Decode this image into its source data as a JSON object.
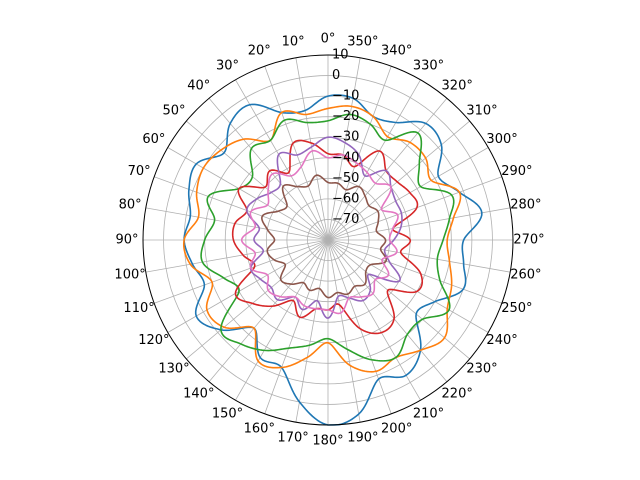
{
  "chart_data": {
    "type": "line",
    "projection": "polar",
    "theta_zero": "top",
    "theta_direction": "clockwise",
    "title": "",
    "xlabel": "",
    "ylabel": "",
    "rlim": [
      -80,
      10
    ],
    "grid": true,
    "legend": "none",
    "angle_tick_labels": [
      "0°",
      "10°",
      "20°",
      "30°",
      "40°",
      "50°",
      "60°",
      "70°",
      "80°",
      "90°",
      "100°",
      "110°",
      "120°",
      "130°",
      "140°",
      "150°",
      "160°",
      "170°",
      "180°",
      "190°",
      "200°",
      "210°",
      "220°",
      "230°",
      "240°",
      "250°",
      "260°",
      "270°",
      "280°",
      "290°",
      "300°",
      "310°",
      "320°",
      "330°",
      "340°",
      "350°"
    ],
    "radial_ticks": [
      10,
      0,
      -10,
      -20,
      -30,
      -40,
      -50,
      -60,
      -70
    ],
    "radial_tick_labels": [
      "10",
      "0",
      "−10",
      "−20",
      "−30",
      "−40",
      "−50",
      "−60",
      "−70"
    ],
    "radial_label_angle_deg": 0,
    "theta_deg": [
      0,
      10,
      20,
      30,
      40,
      50,
      60,
      70,
      80,
      90,
      100,
      110,
      120,
      130,
      140,
      150,
      160,
      170,
      180,
      190,
      200,
      210,
      220,
      230,
      240,
      250,
      260,
      270,
      280,
      290,
      300,
      310,
      320,
      330,
      340,
      350
    ],
    "series": [
      {
        "color": "#1f77b4",
        "values": [
          -10,
          -16,
          -14,
          -4,
          -6,
          -14,
          -6,
          -8,
          -12,
          -10,
          -13,
          -16,
          -6,
          -12,
          -24,
          -14,
          -14,
          0,
          10,
          6,
          -8,
          -4,
          -10,
          -24,
          -20,
          -10,
          -13,
          -14,
          -4,
          -12,
          -18,
          -8,
          -6,
          -14,
          -16,
          -10
        ]
      },
      {
        "color": "#ff7f0e",
        "values": [
          -16,
          -18,
          -14,
          -24,
          -16,
          -12,
          -10,
          -12,
          -16,
          -10,
          -12,
          -20,
          -12,
          -14,
          -24,
          -12,
          -14,
          -22,
          -30,
          -18,
          -12,
          -14,
          -10,
          -6,
          -13,
          -16,
          -20,
          -22,
          -18,
          -12,
          -22,
          -18,
          -18,
          -22,
          -16,
          -14
        ]
      },
      {
        "color": "#2ca02c",
        "values": [
          -22,
          -22,
          -18,
          -24,
          -22,
          -32,
          -30,
          -18,
          -24,
          -20,
          -18,
          -26,
          -30,
          -12,
          -14,
          -18,
          -24,
          -28,
          -32,
          -26,
          -18,
          -14,
          -20,
          -20,
          -12,
          -22,
          -26,
          -24,
          -20,
          -16,
          -28,
          -22,
          -12,
          -24,
          -20,
          -18
        ]
      },
      {
        "color": "#d62728",
        "values": [
          -38,
          -32,
          -30,
          -42,
          -36,
          -40,
          -30,
          -38,
          -34,
          -34,
          -38,
          -42,
          -28,
          -32,
          -38,
          -46,
          -40,
          -46,
          -46,
          -48,
          -34,
          -28,
          -30,
          -42,
          -30,
          -32,
          -44,
          -40,
          -48,
          -34,
          -34,
          -36,
          -36,
          -30,
          -42,
          -38
        ]
      },
      {
        "color": "#9467bd",
        "values": [
          -30,
          -34,
          -36,
          -32,
          -44,
          -44,
          -40,
          -38,
          -46,
          -44,
          -48,
          -40,
          -42,
          -44,
          -42,
          -48,
          -44,
          -50,
          -42,
          -52,
          -50,
          -46,
          -48,
          -54,
          -40,
          -48,
          -52,
          -48,
          -44,
          -42,
          -42,
          -40,
          -36,
          -44,
          -36,
          -32
        ]
      },
      {
        "color": "#8c564b",
        "values": [
          -52,
          -48,
          -52,
          -50,
          -46,
          -54,
          -52,
          -46,
          -50,
          -54,
          -50,
          -52,
          -56,
          -50,
          -52,
          -56,
          -54,
          -56,
          -52,
          -54,
          -52,
          -54,
          -52,
          -56,
          -56,
          -50,
          -54,
          -52,
          -56,
          -54,
          -52,
          -54,
          -52,
          -50,
          -54,
          -52
        ]
      },
      {
        "color": "#e377c2",
        "values": [
          -40,
          -36,
          -42,
          -44,
          -38,
          -42,
          -46,
          -40,
          -44,
          -38,
          -44,
          -40,
          -46,
          -42,
          -44,
          -48,
          -46,
          -46,
          -46,
          -44,
          -50,
          -48,
          -46,
          -50,
          -46,
          -52,
          -46,
          -50,
          -48,
          -44,
          -50,
          -40,
          -44,
          -42,
          -40,
          -38
        ]
      }
    ]
  }
}
